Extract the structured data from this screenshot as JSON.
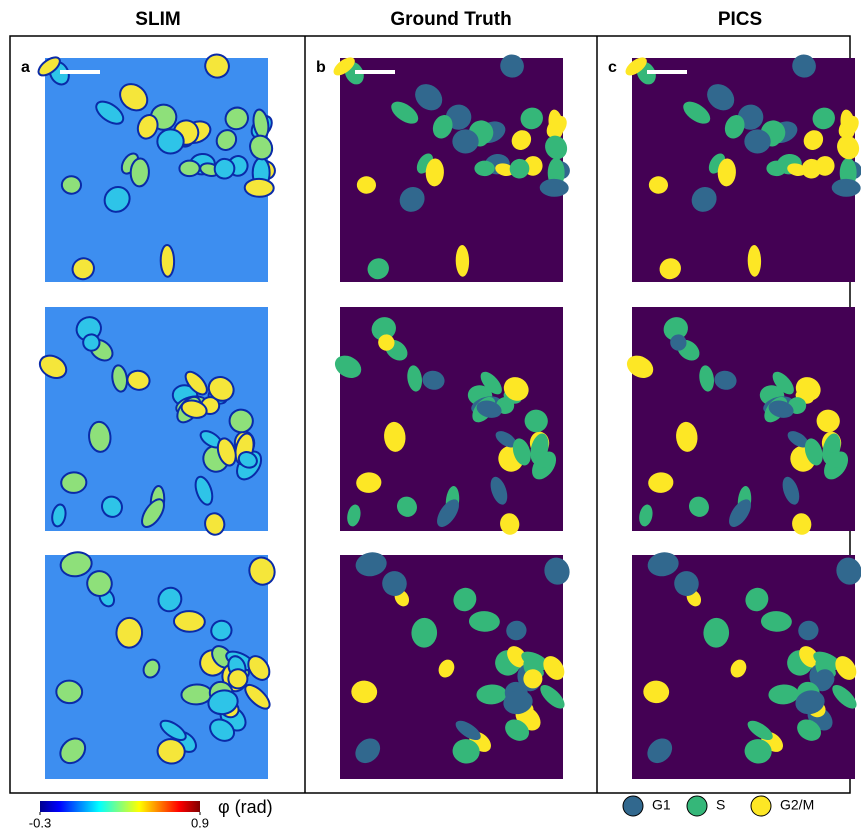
{
  "columns": [
    {
      "title": "SLIM",
      "label": "a"
    },
    {
      "title": "Ground Truth",
      "label": "b"
    },
    {
      "title": "PICS",
      "label": "c"
    }
  ],
  "colorbar": {
    "label": "φ  (rad)",
    "ticks": [
      -0.3,
      0.9
    ]
  },
  "legend": [
    {
      "name": "G1",
      "color": "#31688e"
    },
    {
      "name": "S",
      "color": "#35b779"
    },
    {
      "name": "G2/M",
      "color": "#fde725"
    }
  ]
}
